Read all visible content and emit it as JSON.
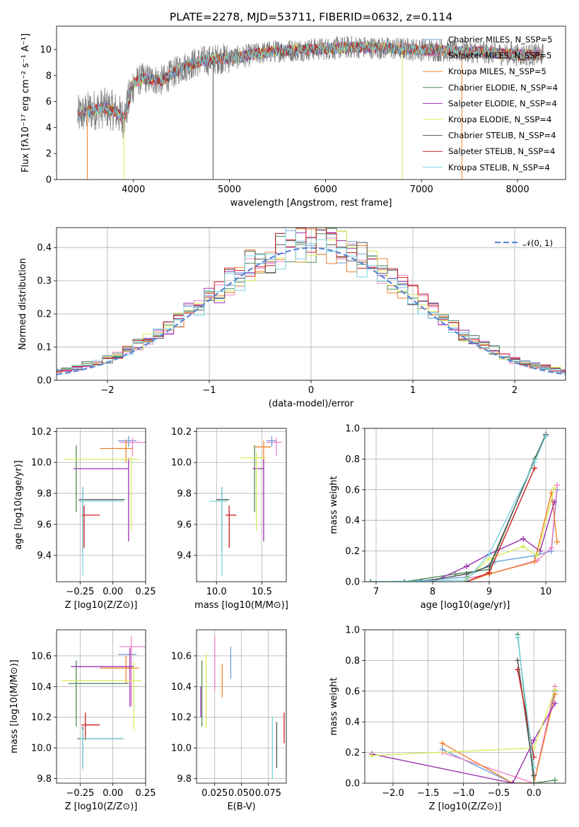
{
  "figure": {
    "title": "PLATE=2278, MJD=53711, FIBERID=0632, z=0.114"
  },
  "series": [
    {
      "name": "Chabrier MILES, N_SSP=5",
      "color": "#6a9fd8"
    },
    {
      "name": "Salpeter MILES, N_SSP=5",
      "color": "#f080c8"
    },
    {
      "name": "Kroupa MILES, N_SSP=5",
      "color": "#f0822d"
    },
    {
      "name": "Chabrier ELODIE, N_SSP=4",
      "color": "#4f8a5a"
    },
    {
      "name": "Salpeter ELODIE, N_SSP=4",
      "color": "#9b30b0"
    },
    {
      "name": "Kroupa ELODIE, N_SSP=4",
      "color": "#d9ec58"
    },
    {
      "name": "Chabrier STELIB, N_SSP=4",
      "color": "#555555"
    },
    {
      "name": "Salpeter STELIB, N_SSP=4",
      "color": "#cc1f1f"
    },
    {
      "name": "Kroupa STELIB, N_SSP=4",
      "color": "#78d4e0"
    }
  ],
  "chart_data": [
    {
      "id": "spectrum",
      "type": "line",
      "xlabel": "wavelength [Angstrom, rest frame]",
      "ylabel": "Flux [fλ10⁻¹⁷ erg cm⁻² s⁻¹ A⁻¹]",
      "xlim": [
        3200,
        8500
      ],
      "ylim": [
        0,
        11.8
      ],
      "xticks": [
        4000,
        5000,
        6000,
        7000,
        8000
      ],
      "yticks": [
        0,
        2,
        4,
        6,
        8,
        10
      ],
      "legend": "right",
      "continuum": [
        [
          3420,
          4.9
        ],
        [
          3550,
          5.3
        ],
        [
          3700,
          5.5
        ],
        [
          3800,
          5.3
        ],
        [
          3900,
          4.7
        ],
        [
          3950,
          6.0
        ],
        [
          4000,
          7.4
        ],
        [
          4100,
          7.8
        ],
        [
          4300,
          7.6
        ],
        [
          4500,
          8.6
        ],
        [
          4700,
          9.1
        ],
        [
          4900,
          9.3
        ],
        [
          5100,
          9.4
        ],
        [
          5300,
          9.7
        ],
        [
          5500,
          9.9
        ],
        [
          5800,
          10.0
        ],
        [
          6100,
          10.1
        ],
        [
          6300,
          10.2
        ],
        [
          6600,
          10.1
        ],
        [
          7000,
          10.0
        ],
        [
          7300,
          9.9
        ],
        [
          7600,
          9.8
        ],
        [
          8000,
          9.6
        ],
        [
          8270,
          9.6
        ]
      ]
    },
    {
      "id": "residuals",
      "type": "histogram",
      "xlabel": "(data-model)/error",
      "ylabel": "Normed distribution",
      "xlim": [
        -2.5,
        2.5
      ],
      "ylim": [
        0,
        0.46
      ],
      "xticks": [
        -2,
        -1,
        0,
        1,
        2
      ],
      "yticks": [
        0,
        0.1,
        0.2,
        0.3,
        0.4
      ],
      "reference": "𝒩(0, 1)",
      "bin_width": 0.1
    },
    {
      "id": "age_vs_Z",
      "type": "errorbar",
      "xlabel": "Z [log10(Z/Z⊙)]",
      "ylabel": "age  [log10(age/yr)]",
      "xlim": [
        -0.43,
        0.25
      ],
      "ylim": [
        9.23,
        10.22
      ],
      "xticks": [
        -0.25,
        0.0,
        0.25
      ],
      "yticks": [
        9.4,
        9.6,
        9.8,
        10.0,
        10.2
      ],
      "points": [
        {
          "s": 0,
          "x": 0.12,
          "y": 10.14,
          "xl": 0.04,
          "xh": 0.18,
          "yl": 10.1,
          "yh": 10.17
        },
        {
          "s": 1,
          "x": 0.15,
          "y": 10.13,
          "xl": 0.05,
          "xh": 0.25,
          "yl": 10.04,
          "yh": 10.16
        },
        {
          "s": 2,
          "x": 0.1,
          "y": 10.09,
          "xl": -0.1,
          "xh": 0.15,
          "yl": 10.0,
          "yh": 10.15
        },
        {
          "s": 3,
          "x": -0.28,
          "y": 9.89,
          "xl": -0.28,
          "xh": -0.28,
          "yl": 9.68,
          "yh": 10.11
        },
        {
          "s": 4,
          "x": 0.12,
          "y": 9.96,
          "xl": -0.3,
          "xh": 0.12,
          "yl": 9.49,
          "yh": 10.03
        },
        {
          "s": 5,
          "x": 0.14,
          "y": 10.02,
          "xl": -0.37,
          "xh": 0.2,
          "yl": 9.56,
          "yh": 10.04
        },
        {
          "s": 6,
          "x": -0.23,
          "y": 9.76,
          "xl": -0.26,
          "xh": 0.09,
          "yl": 9.43,
          "yh": 9.84
        },
        {
          "s": 7,
          "x": -0.22,
          "y": 9.66,
          "xl": -0.24,
          "xh": -0.1,
          "yl": 9.45,
          "yh": 9.72
        },
        {
          "s": 8,
          "x": -0.23,
          "y": 9.75,
          "xl": -0.26,
          "xh": 0.08,
          "yl": 9.27,
          "yh": 9.84
        }
      ]
    },
    {
      "id": "age_vs_mass",
      "type": "errorbar",
      "xlabel": "mass [log10(M/M⊙)]",
      "ylabel": "",
      "xlim": [
        9.78,
        10.77
      ],
      "ylim": [
        9.23,
        10.22
      ],
      "xticks": [
        10.0,
        10.5
      ],
      "yticks": [
        9.4,
        9.6,
        9.8,
        10.0,
        10.2
      ],
      "points": [
        {
          "s": 0,
          "x": 10.61,
          "y": 10.14,
          "xl": 10.55,
          "xh": 10.66,
          "yl": 10.1,
          "yh": 10.17
        },
        {
          "s": 1,
          "x": 10.66,
          "y": 10.13,
          "xl": 10.55,
          "xh": 10.72,
          "yl": 10.04,
          "yh": 10.16
        },
        {
          "s": 2,
          "x": 10.52,
          "y": 10.1,
          "xl": 10.42,
          "xh": 10.6,
          "yl": 10.0,
          "yh": 10.14
        },
        {
          "s": 3,
          "x": 10.42,
          "y": 9.89,
          "xl": 10.42,
          "xh": 10.42,
          "yl": 9.68,
          "yh": 10.11
        },
        {
          "s": 4,
          "x": 10.52,
          "y": 9.96,
          "xl": 10.4,
          "xh": 10.52,
          "yl": 9.49,
          "yh": 10.02
        },
        {
          "s": 5,
          "x": 10.44,
          "y": 10.03,
          "xl": 10.27,
          "xh": 10.55,
          "yl": 9.56,
          "yh": 10.06
        },
        {
          "s": 6,
          "x": 10.06,
          "y": 9.76,
          "xl": 10.0,
          "xh": 10.14,
          "yl": 9.43,
          "yh": 9.84
        },
        {
          "s": 7,
          "x": 10.14,
          "y": 9.66,
          "xl": 10.1,
          "xh": 10.22,
          "yl": 9.45,
          "yh": 9.72
        },
        {
          "s": 8,
          "x": 10.06,
          "y": 9.75,
          "xl": 9.92,
          "xh": 10.12,
          "yl": 9.27,
          "yh": 9.84
        }
      ]
    },
    {
      "id": "weight_vs_age",
      "type": "line",
      "xlabel": "age  [log10(age/yr)]",
      "ylabel": "mass weight",
      "xlim": [
        6.8,
        10.35
      ],
      "ylim": [
        0,
        1.0
      ],
      "xticks": [
        7,
        8,
        9,
        10
      ],
      "yticks": [
        0,
        0.2,
        0.4,
        0.6,
        0.8,
        1.0
      ],
      "lines": [
        {
          "s": 0,
          "x": [
            7.5,
            8.6,
            9.1,
            9.8,
            10.1,
            10.2
          ],
          "y": [
            0.0,
            0.03,
            0.13,
            0.17,
            0.2,
            0.6
          ]
        },
        {
          "s": 1,
          "x": [
            8.6,
            9.0,
            9.85,
            10.1,
            10.2
          ],
          "y": [
            0.02,
            0.05,
            0.14,
            0.22,
            0.63
          ]
        },
        {
          "s": 2,
          "x": [
            8.6,
            9.0,
            9.8,
            10.1,
            10.2
          ],
          "y": [
            0.0,
            0.05,
            0.13,
            0.58,
            0.26
          ]
        },
        {
          "s": 3,
          "x": [
            6.9,
            7.5,
            8.4,
            9.0,
            9.8,
            10.0
          ],
          "y": [
            0.0,
            0.0,
            0.05,
            0.08,
            0.8,
            0.96
          ]
        },
        {
          "s": 4,
          "x": [
            8.0,
            8.6,
            9.0,
            9.6,
            9.9,
            10.15
          ],
          "y": [
            0.0,
            0.1,
            0.18,
            0.28,
            0.2,
            0.52
          ]
        },
        {
          "s": 5,
          "x": [
            8.6,
            9.0,
            9.6,
            9.85,
            10.15
          ],
          "y": [
            0.02,
            0.15,
            0.23,
            0.17,
            0.61
          ]
        },
        {
          "s": 6,
          "x": [
            7.8,
            8.6,
            9.0,
            10.0
          ],
          "y": [
            0.0,
            0.05,
            0.1,
            0.96
          ]
        },
        {
          "s": 7,
          "x": [
            8.6,
            9.0,
            9.8
          ],
          "y": [
            0.0,
            0.06,
            0.74
          ]
        },
        {
          "s": 8,
          "x": [
            7.0,
            8.6,
            9.0,
            9.8,
            10.0
          ],
          "y": [
            0.0,
            0.01,
            0.18,
            0.78,
            0.95
          ]
        }
      ]
    },
    {
      "id": "mass_vs_Z",
      "type": "errorbar",
      "xlabel": "Z [log10(Z/Z⊙)]",
      "ylabel": "mass [log10(M/M⊙)]",
      "xlim": [
        -0.43,
        0.25
      ],
      "ylim": [
        9.77,
        10.77
      ],
      "xticks": [
        -0.25,
        0.0,
        0.25
      ],
      "yticks": [
        9.8,
        10.0,
        10.2,
        10.4,
        10.6
      ],
      "points": [
        {
          "s": 0,
          "x": 0.14,
          "y": 10.61,
          "xl": 0.04,
          "xh": 0.18,
          "yl": 10.52,
          "yh": 10.66
        },
        {
          "s": 1,
          "x": 0.14,
          "y": 10.66,
          "xl": 0.05,
          "xh": 0.25,
          "yl": 10.27,
          "yh": 10.73
        },
        {
          "s": 2,
          "x": 0.1,
          "y": 10.52,
          "xl": -0.1,
          "xh": 0.2,
          "yl": 10.42,
          "yh": 10.6
        },
        {
          "s": 3,
          "x": -0.28,
          "y": 10.42,
          "xl": -0.34,
          "xh": 0.12,
          "yl": 10.14,
          "yh": 10.57
        },
        {
          "s": 4,
          "x": 0.13,
          "y": 10.53,
          "xl": -0.32,
          "xh": 0.16,
          "yl": 10.27,
          "yh": 10.65
        },
        {
          "s": 5,
          "x": 0.16,
          "y": 10.44,
          "xl": -0.39,
          "xh": 0.22,
          "yl": 10.12,
          "yh": 10.56
        },
        {
          "s": 6,
          "x": -0.23,
          "y": 10.06,
          "xl": -0.27,
          "xh": 0.08,
          "yl": 9.87,
          "yh": 10.14
        },
        {
          "s": 7,
          "x": -0.21,
          "y": 10.15,
          "xl": -0.24,
          "xh": -0.1,
          "yl": 10.05,
          "yh": 10.23
        },
        {
          "s": 8,
          "x": -0.23,
          "y": 10.06,
          "xl": -0.26,
          "xh": 0.08,
          "yl": 9.86,
          "yh": 10.12
        }
      ]
    },
    {
      "id": "mass_vs_EBV",
      "type": "errorbar",
      "xlabel": "E(B-V)",
      "ylabel": "",
      "xlim": [
        0.008,
        0.092
      ],
      "ylim": [
        9.77,
        10.77
      ],
      "xticks": [
        0.025,
        0.05,
        0.075
      ],
      "yticks": [
        9.8,
        10.0,
        10.2,
        10.4,
        10.6
      ],
      "points": [
        {
          "s": 0,
          "x": 0.04,
          "y": 10.55,
          "yl": 10.45,
          "yh": 10.66
        },
        {
          "s": 1,
          "x": 0.025,
          "y": 10.55,
          "yl": 10.37,
          "yh": 10.73
        },
        {
          "s": 2,
          "x": 0.032,
          "y": 10.45,
          "yl": 10.33,
          "yh": 10.55
        },
        {
          "s": 3,
          "x": 0.013,
          "y": 10.4,
          "yl": 10.14,
          "yh": 10.57
        },
        {
          "s": 4,
          "x": 0.012,
          "y": 10.3,
          "yl": 10.2,
          "yh": 10.4
        },
        {
          "s": 5,
          "x": 0.017,
          "y": 10.4,
          "yl": 10.13,
          "yh": 10.62
        },
        {
          "s": 6,
          "x": 0.083,
          "y": 10.03,
          "yl": 9.87,
          "yh": 10.17
        },
        {
          "s": 7,
          "x": 0.09,
          "y": 10.13,
          "yl": 10.03,
          "yh": 10.23
        },
        {
          "s": 8,
          "x": 0.079,
          "y": 10.0,
          "yl": 9.8,
          "yh": 10.2
        }
      ]
    },
    {
      "id": "weight_vs_Z",
      "type": "line",
      "xlabel": "Z [log10(Z/Z⊙)]",
      "ylabel": "mass weight",
      "xlim": [
        -2.4,
        0.45
      ],
      "ylim": [
        0,
        1.0
      ],
      "xticks": [
        -2.0,
        -1.5,
        -1.0,
        -0.5,
        0.0
      ],
      "yticks": [
        0,
        0.2,
        0.4,
        0.6,
        0.8,
        1.0
      ],
      "lines": [
        {
          "s": 0,
          "x": [
            -1.3,
            -0.3,
            0.0,
            0.3
          ],
          "y": [
            0.22,
            0.0,
            0.0,
            0.6
          ]
        },
        {
          "s": 1,
          "x": [
            -1.3,
            0.0,
            0.3
          ],
          "y": [
            0.2,
            0.0,
            0.63
          ]
        },
        {
          "s": 2,
          "x": [
            -1.3,
            -0.3,
            0.0,
            0.3
          ],
          "y": [
            0.26,
            0.0,
            0.0,
            0.58
          ]
        },
        {
          "s": 3,
          "x": [
            -0.23,
            0.0,
            0.3
          ],
          "y": [
            0.97,
            0.0,
            0.02
          ]
        },
        {
          "s": 4,
          "x": [
            -2.3,
            -0.3,
            0.0,
            0.3
          ],
          "y": [
            0.19,
            0.0,
            0.28,
            0.52
          ]
        },
        {
          "s": 5,
          "x": [
            -2.3,
            0.0,
            0.3
          ],
          "y": [
            0.18,
            0.23,
            0.61
          ]
        },
        {
          "s": 6,
          "x": [
            -0.23,
            0.0
          ],
          "y": [
            0.8,
            0.05
          ]
        },
        {
          "s": 7,
          "x": [
            -0.23,
            0.0
          ],
          "y": [
            0.74,
            0.17
          ]
        },
        {
          "s": 8,
          "x": [
            -0.23,
            0.0
          ],
          "y": [
            0.95,
            0.1
          ]
        }
      ]
    }
  ]
}
